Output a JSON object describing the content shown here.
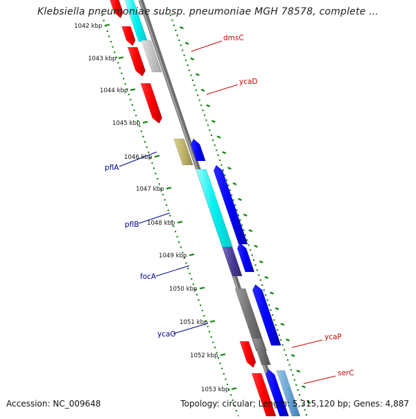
{
  "header": {
    "title": "Klebsiella pneumoniae subsp. pneumoniae MGH 78578, complete ..."
  },
  "footer": {
    "accession": "Accession: NC_009648",
    "summary": "Topology: circular; Length: 5,315,120 bp; Genes: 4,887"
  },
  "colors": {
    "backbone": "#8a8a8a",
    "ruler": "#1a8a1a",
    "label_forward": "#cc0000",
    "label_reverse": "#00008b"
  },
  "ruler_ticks": [
    "1042 kbp",
    "1043 kbp",
    "1044 kbp",
    "1045 kbp",
    "1046 kbp",
    "1047 kbp",
    "1048 kbp",
    "1049 kbp",
    "1050 kbp",
    "1051 kbp",
    "1052 kbp",
    "1053 kbp"
  ],
  "gene_labels": [
    {
      "name": "dmsC",
      "strand": "forward"
    },
    {
      "name": "ycaD",
      "strand": "forward"
    },
    {
      "name": "pflA",
      "strand": "reverse"
    },
    {
      "name": "pflB",
      "strand": "reverse"
    },
    {
      "name": "focA",
      "strand": "reverse"
    },
    {
      "name": "ycaO",
      "strand": "reverse"
    },
    {
      "name": "ycaP",
      "strand": "forward"
    },
    {
      "name": "serC",
      "strand": "forward"
    }
  ]
}
